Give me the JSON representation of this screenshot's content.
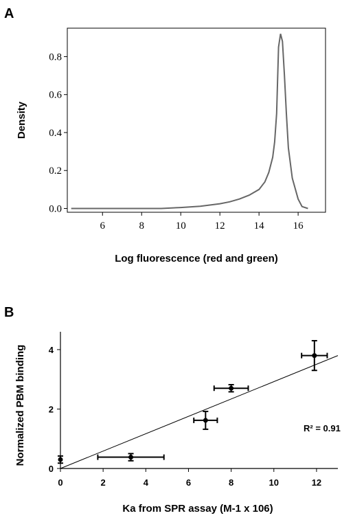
{
  "chart_data": [
    {
      "panel": "A",
      "type": "line",
      "xlabel": "Log fluorescence (red and green)",
      "ylabel": "Density",
      "xlim": [
        4.2,
        17.4
      ],
      "ylim": [
        -0.02,
        0.95
      ],
      "xticks": [
        "6",
        "8",
        "10",
        "12",
        "14",
        "16"
      ],
      "yticks": [
        "0.0",
        "0.2",
        "0.4",
        "0.6",
        "0.8"
      ],
      "grid": false,
      "series": [
        {
          "x": [
            4.4,
            9.0,
            10.0,
            11.0,
            12.0,
            12.5,
            13.0,
            13.5,
            14.0,
            14.3,
            14.5,
            14.7,
            14.8,
            14.9,
            15.0,
            15.1,
            15.2,
            15.3,
            15.4,
            15.5,
            15.7,
            16.0,
            16.2,
            16.5
          ],
          "y": [
            0.0,
            0.0,
            0.005,
            0.012,
            0.025,
            0.035,
            0.05,
            0.07,
            0.1,
            0.14,
            0.19,
            0.27,
            0.35,
            0.5,
            0.85,
            0.92,
            0.88,
            0.7,
            0.5,
            0.32,
            0.16,
            0.05,
            0.01,
            0.0
          ],
          "color": "#666666"
        }
      ]
    },
    {
      "panel": "B",
      "type": "scatter",
      "xlabel": "Ka from SPR assay (M-1 x 106)",
      "ylabel": "Normalized PBM binding",
      "xlim": [
        0,
        13
      ],
      "ylim": [
        0,
        4.6
      ],
      "xticks": [
        "0",
        "2",
        "4",
        "6",
        "8",
        "10",
        "12"
      ],
      "yticks": [
        "0",
        "2",
        "4"
      ],
      "grid": false,
      "annotation": "R² = 0.91",
      "points": [
        {
          "x": 0.0,
          "y": 0.3,
          "xerr": 0.0,
          "yerr": 0.12
        },
        {
          "x": 3.3,
          "y": 0.38,
          "xerr": 1.55,
          "yerr": 0.12
        },
        {
          "x": 6.8,
          "y": 1.62,
          "xerr": 0.55,
          "yerr": 0.3
        },
        {
          "x": 8.0,
          "y": 2.7,
          "xerr": 0.8,
          "yerr": 0.12
        },
        {
          "x": 11.9,
          "y": 3.8,
          "xerr": 0.6,
          "yerr": 0.5
        }
      ],
      "trendline": {
        "x": [
          0,
          13
        ],
        "y": [
          0,
          3.8
        ]
      }
    }
  ]
}
